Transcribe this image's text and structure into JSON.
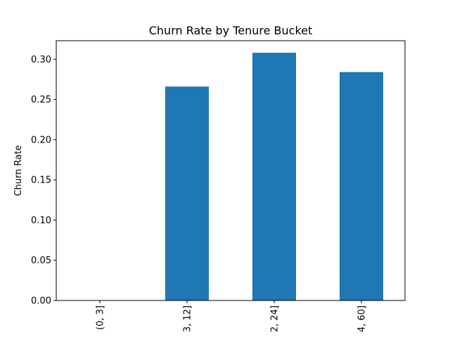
{
  "chart_data": {
    "type": "bar",
    "title": "Churn Rate by Tenure Bucket",
    "xlabel": "",
    "ylabel": "Churn Rate",
    "categories": [
      "(0, 3]",
      "3, 12]",
      "2, 24]",
      "4, 60]"
    ],
    "values": [
      0.0,
      0.266,
      0.308,
      0.284
    ],
    "ylim": [
      0,
      0.323
    ],
    "yticks": [
      0.0,
      0.05,
      0.1,
      0.15,
      0.2,
      0.25,
      0.3
    ],
    "ytick_labels": [
      "0.00",
      "0.05",
      "0.10",
      "0.15",
      "0.20",
      "0.25",
      "0.30"
    ],
    "bar_color": "#1f77b4",
    "grid": false,
    "xtick_rotation": "vertical"
  }
}
